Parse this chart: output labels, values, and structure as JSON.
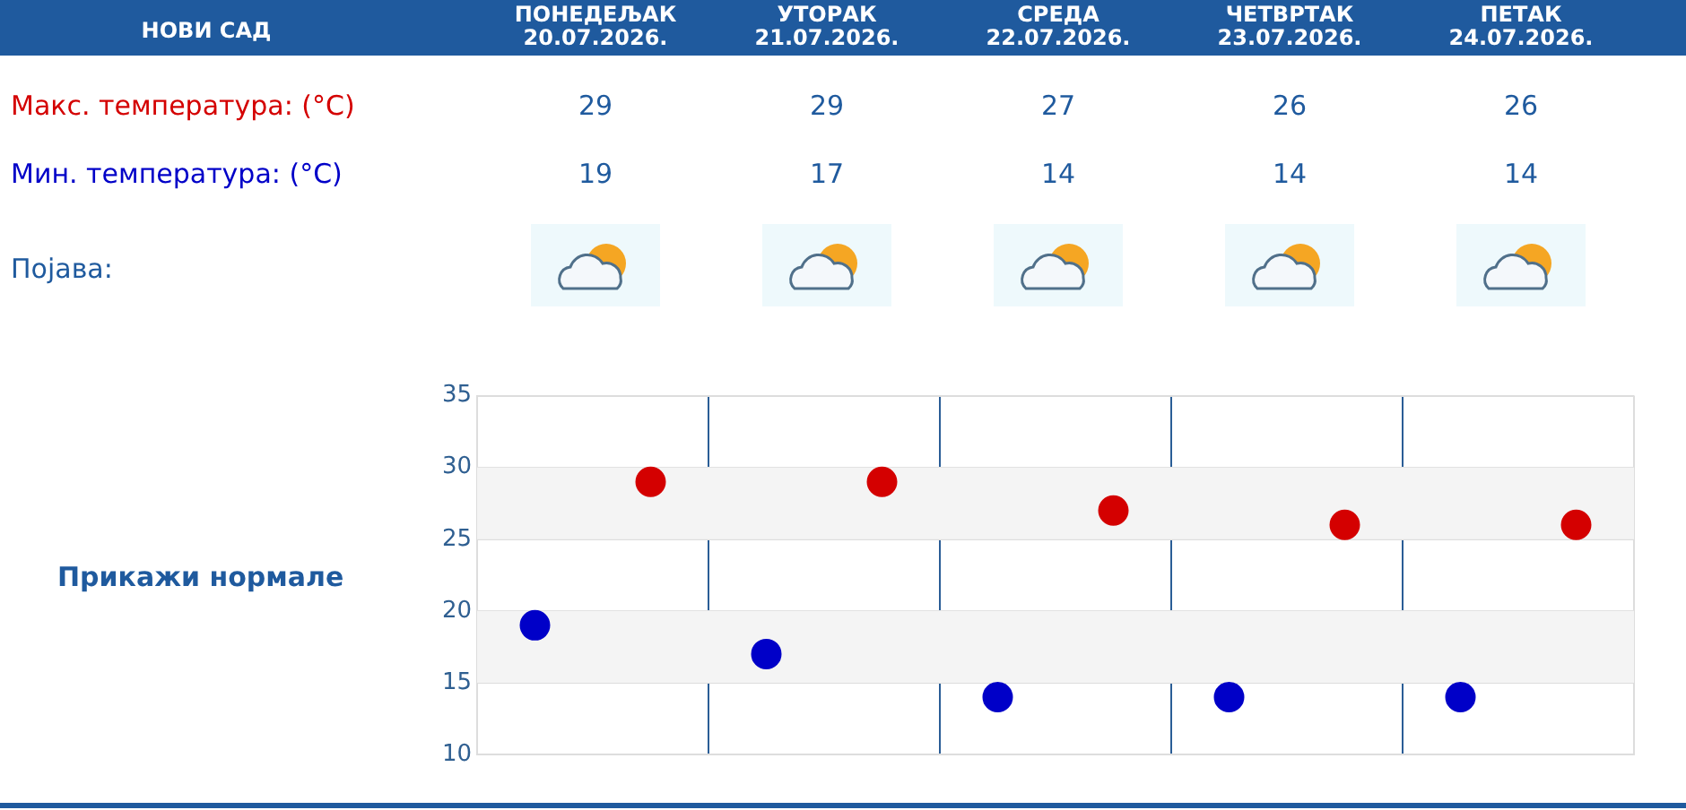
{
  "chart_data": {
    "type": "scatter",
    "title": "НОВИ САД",
    "categories": [
      null,
      null,
      null,
      null,
      null
    ],
    "series": [
      {
        "name": "Мин. температура: (°C)",
        "color": "#0000c8",
        "values": [
          19,
          17,
          14,
          14,
          14
        ]
      },
      {
        "name": "Макс. температура: (°C)",
        "color": "#d40000",
        "values": [
          29,
          29,
          27,
          26,
          26
        ]
      }
    ],
    "ylim": [
      10,
      35
    ],
    "yticks": [
      10,
      15,
      20,
      25,
      30,
      35
    ],
    "grid": true,
    "tick_labels": "y",
    "marker": "circle",
    "data_labels": true,
    "bands": [
      {
        "axis": "y",
        "from": 15,
        "to": 20,
        "color": "#f4f4f4"
      },
      {
        "axis": "y",
        "from": 25,
        "to": 30,
        "color": "#f4f4f4"
      }
    ],
    "annotations": [
      "ПОНЕДЕЉАК 20.07.2026.",
      "УТОРАК 21.07.2026.",
      "СРЕДА 22.07.2026.",
      "ЧЕТВРТАК 23.07.2026.",
      "ПЕТАК 24.07.2026.",
      "Појава:",
      "Прикажи нормале"
    ]
  }
}
